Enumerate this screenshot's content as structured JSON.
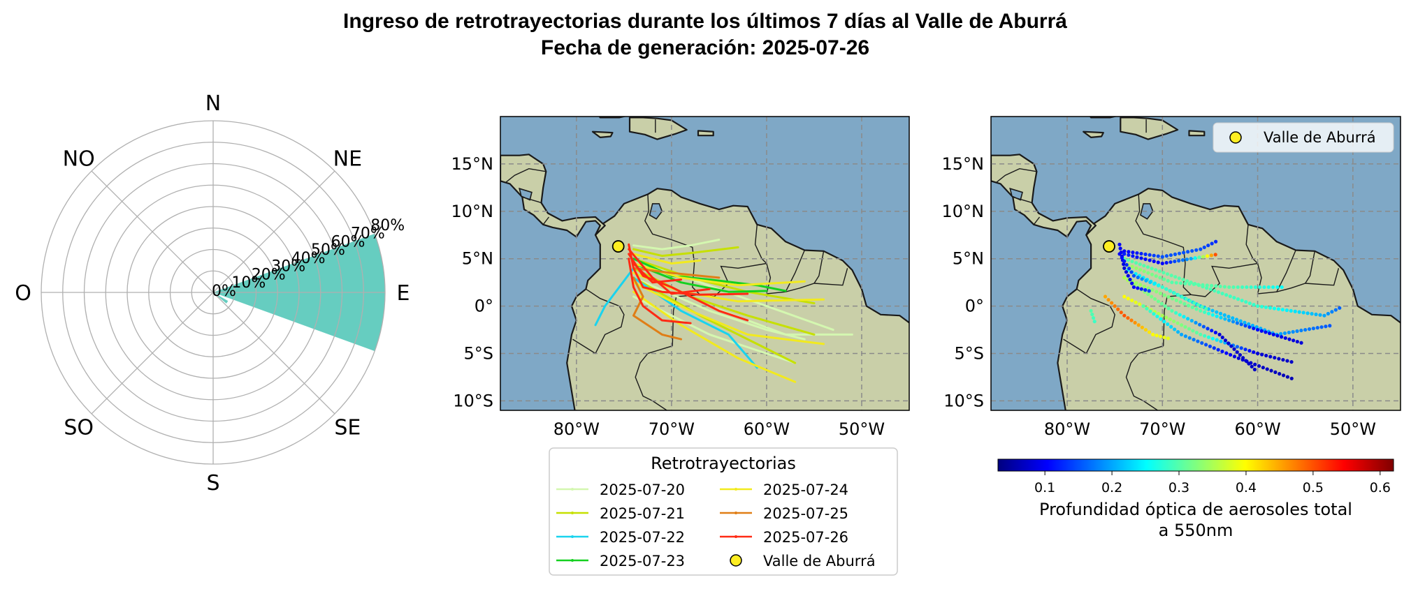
{
  "title": {
    "line1": "Ingreso de retrotrayectorias durante los últimos 7 días al Valle de Aburrá",
    "line2": "Fecha de generación: 2025-07-26"
  },
  "colors": {
    "rose_fill": "#66cdc0",
    "ocean": "#7fa8c6",
    "land": "#c9cfa8",
    "marker": "#ffee22"
  },
  "chart_data": [
    {
      "type": "polar-bar",
      "directions": [
        "N",
        "NE",
        "E",
        "SE",
        "S",
        "SO",
        "O",
        "NO"
      ],
      "radial_tick_labels": [
        "0%",
        "10%",
        "20%",
        "30%",
        "40%",
        "50%",
        "60%",
        "70%",
        "80%"
      ],
      "rlim": [
        0,
        80
      ],
      "grid": true,
      "sectors": [
        {
          "direction": "E",
          "center_deg": 90,
          "width_deg": 40,
          "value": 80
        },
        {
          "direction": "SE",
          "center_deg": 125,
          "width_deg": 10,
          "value": 8
        }
      ]
    },
    {
      "type": "line",
      "xlim": [
        -88,
        -45
      ],
      "ylim": [
        -11,
        20
      ],
      "x_ticks": [
        -80,
        -70,
        -60,
        -50
      ],
      "x_tick_labels": [
        "80°W",
        "70°W",
        "60°W",
        "50°W"
      ],
      "y_ticks": [
        15,
        10,
        5,
        0,
        -5,
        -10
      ],
      "y_tick_labels": [
        "15°N",
        "10°N",
        "5°N",
        "0°",
        "5°S",
        "10°S"
      ],
      "grid": true,
      "legend_title": "Retrotrayectorias",
      "legend_position": "below",
      "origin": {
        "name": "Valle de Aburrá",
        "lon": -75.6,
        "lat": 6.3
      },
      "series": [
        {
          "name": "2025-07-20",
          "color": "#d4f7b0",
          "lines": [
            [
              [
                -74,
                6.4
              ],
              [
                -71,
                6
              ],
              [
                -68,
                6.4
              ],
              [
                -65,
                7
              ]
            ],
            [
              [
                -74,
                5
              ],
              [
                -67,
                2.5
              ],
              [
                -60,
                0
              ],
              [
                -53,
                -2.5
              ]
            ],
            [
              [
                -74,
                3
              ],
              [
                -66,
                -0.5
              ],
              [
                -60,
                -2.5
              ],
              [
                -56,
                -3.5
              ]
            ],
            [
              [
                -74,
                4
              ],
              [
                -66,
                0
              ],
              [
                -58,
                -3
              ],
              [
                -51,
                -3
              ]
            ],
            [
              [
                -74,
                1
              ],
              [
                -66,
                -3
              ],
              [
                -60,
                -5
              ],
              [
                -57,
                -6
              ]
            ]
          ]
        },
        {
          "name": "2025-07-21",
          "color": "#c6e000",
          "lines": [
            [
              [
                -74,
                6
              ],
              [
                -71,
                5.3
              ],
              [
                -68,
                5.6
              ],
              [
                -63,
                6.2
              ]
            ],
            [
              [
                -74,
                5
              ],
              [
                -68,
                3
              ],
              [
                -62,
                1.5
              ],
              [
                -55,
                0.3
              ]
            ],
            [
              [
                -74,
                4
              ],
              [
                -68,
                1
              ],
              [
                -62,
                -1
              ],
              [
                -55,
                -3
              ]
            ],
            [
              [
                -74,
                3
              ],
              [
                -67,
                -1
              ],
              [
                -61,
                -4
              ],
              [
                -57,
                -6
              ]
            ]
          ]
        },
        {
          "name": "2025-07-22",
          "color": "#1ad3ee",
          "lines": [
            [
              [
                -74,
                4
              ],
              [
                -77,
                0
              ],
              [
                -78,
                -2
              ]
            ],
            [
              [
                -74,
                3
              ],
              [
                -69,
                -0.5
              ],
              [
                -64,
                -3
              ],
              [
                -61,
                -6.5
              ]
            ],
            [
              [
                -74,
                5
              ],
              [
                -70,
                3.2
              ],
              [
                -66,
                2.6
              ]
            ]
          ]
        },
        {
          "name": "2025-07-23",
          "color": "#14d020",
          "lines": [
            [
              [
                -74,
                5
              ],
              [
                -70,
                3.2
              ],
              [
                -66,
                2.8
              ],
              [
                -61,
                2.2
              ],
              [
                -58,
                1.6
              ]
            ],
            [
              [
                -74,
                4.5
              ],
              [
                -69,
                2.5
              ],
              [
                -64,
                1.5
              ],
              [
                -60,
                1.6
              ]
            ]
          ]
        },
        {
          "name": "2025-07-24",
          "color": "#f2ea1e",
          "lines": [
            [
              [
                -74,
                4.5
              ],
              [
                -69,
                3
              ],
              [
                -63,
                2.2
              ],
              [
                -56,
                2.6
              ]
            ],
            [
              [
                -74,
                3.5
              ],
              [
                -69,
                1.5
              ],
              [
                -63,
                0.5
              ],
              [
                -54,
                0.7
              ]
            ],
            [
              [
                -74,
                2.5
              ],
              [
                -68,
                -0.5
              ],
              [
                -62,
                -3
              ],
              [
                -54,
                -4
              ]
            ],
            [
              [
                -74,
                1.5
              ],
              [
                -69,
                -2
              ],
              [
                -63,
                -5.5
              ],
              [
                -57,
                -8
              ]
            ],
            [
              [
                -74,
                5.5
              ],
              [
                -70,
                4.5
              ],
              [
                -67,
                4.8
              ]
            ]
          ]
        },
        {
          "name": "2025-07-25",
          "color": "#e07e16",
          "lines": [
            [
              [
                -74,
                3
              ],
              [
                -73,
                1
              ],
              [
                -74,
                -1
              ],
              [
                -71,
                -3
              ],
              [
                -69,
                -3.5
              ]
            ],
            [
              [
                -74,
                4
              ],
              [
                -70,
                3.5
              ],
              [
                -65,
                3
              ]
            ]
          ]
        },
        {
          "name": "2025-07-26",
          "color": "#ff2a14",
          "lines": [
            [
              [
                -74.5,
                6.5
              ],
              [
                -74,
                4
              ],
              [
                -73,
                2
              ],
              [
                -71,
                1.5
              ],
              [
                -67,
                1.2
              ],
              [
                -62,
                1.3
              ]
            ],
            [
              [
                -74.5,
                6
              ],
              [
                -72,
                3
              ],
              [
                -70,
                1.3
              ],
              [
                -66,
                1.8
              ]
            ],
            [
              [
                -74.5,
                5.5
              ],
              [
                -73,
                3.2
              ],
              [
                -70,
                2
              ],
              [
                -65,
                -0.5
              ],
              [
                -62,
                -1.5
              ]
            ],
            [
              [
                -74.5,
                5
              ],
              [
                -74,
                2
              ],
              [
                -73,
                0
              ],
              [
                -71,
                -1.5
              ],
              [
                -68,
                -1.8
              ]
            ],
            [
              [
                -74,
                4.5
              ],
              [
                -72,
                2.5
              ],
              [
                -69,
                2.8
              ]
            ]
          ]
        }
      ]
    },
    {
      "type": "scatter",
      "xlim": [
        -88,
        -45
      ],
      "ylim": [
        -11,
        20
      ],
      "x_ticks": [
        -80,
        -70,
        -60,
        -50
      ],
      "x_tick_labels": [
        "80°W",
        "70°W",
        "60°W",
        "50°W"
      ],
      "y_ticks": [
        15,
        10,
        5,
        0,
        -5,
        -10
      ],
      "y_tick_labels": [
        "15°N",
        "10°N",
        "5°N",
        "0°",
        "5°S",
        "10°S"
      ],
      "grid": true,
      "legend_label": "Valle de Aburrá",
      "legend_position": "top-right",
      "origin": {
        "name": "Valle de Aburrá",
        "lon": -75.6,
        "lat": 6.3
      },
      "colorbar": {
        "label_line1": "Profundidad óptica de aerosoles total",
        "label_line2": "a 550nm",
        "range": [
          0.03,
          0.62
        ],
        "ticks": [
          0.1,
          0.2,
          0.3,
          0.4,
          0.5,
          0.6
        ],
        "tick_labels": [
          "0.1",
          "0.2",
          "0.3",
          "0.4",
          "0.5",
          "0.6"
        ],
        "colormap": "jet"
      },
      "tracks": [
        {
          "path": [
            [
              -74,
              5.8
            ],
            [
              -70,
              5.2
            ],
            [
              -66,
              6
            ],
            [
              -64,
              7
            ]
          ],
          "aod": [
            0.1,
            0.15,
            0.15,
            0.12
          ]
        },
        {
          "path": [
            [
              -74,
              5
            ],
            [
              -67,
              2.5
            ],
            [
              -60,
              0
            ],
            [
              -53,
              -1
            ],
            [
              -51,
              0
            ]
          ],
          "aod": [
            0.3,
            0.3,
            0.28,
            0.2,
            0.15
          ]
        },
        {
          "path": [
            [
              -74,
              4
            ],
            [
              -66,
              0
            ],
            [
              -58,
              -3
            ],
            [
              -52,
              -2
            ]
          ],
          "aod": [
            0.25,
            0.22,
            0.2,
            0.15
          ]
        },
        {
          "path": [
            [
              -74,
              3
            ],
            [
              -66,
              -0.5
            ],
            [
              -60,
              -2.5
            ],
            [
              -55,
              -4
            ]
          ],
          "aod": [
            0.35,
            0.3,
            0.1,
            0.08
          ]
        },
        {
          "path": [
            [
              -74,
              1
            ],
            [
              -66,
              -3
            ],
            [
              -60,
              -5
            ],
            [
              -56,
              -6
            ]
          ],
          "aod": [
            0.4,
            0.3,
            0.08,
            0.07
          ]
        },
        {
          "path": [
            [
              -74,
              3
            ],
            [
              -69,
              -0.5
            ],
            [
              -64,
              -3
            ],
            [
              -60,
              -7
            ]
          ],
          "aod": [
            0.35,
            0.3,
            0.08,
            0.07
          ]
        },
        {
          "path": [
            [
              -72,
              0
            ],
            [
              -68,
              -3
            ],
            [
              -62,
              -5.5
            ],
            [
              -56,
              -7.8
            ]
          ],
          "aod": [
            0.3,
            0.2,
            0.08,
            0.06
          ]
        },
        {
          "path": [
            [
              -74,
              4.5
            ],
            [
              -69,
              2.5
            ],
            [
              -63,
              2
            ],
            [
              -57,
              2
            ]
          ],
          "aod": [
            0.35,
            0.3,
            0.3,
            0.25
          ]
        },
        {
          "path": [
            [
              -74,
              5.5
            ],
            [
              -70,
              4.5
            ],
            [
              -67,
              5
            ],
            [
              -64,
              5.5
            ]
          ],
          "aod": [
            0.12,
            0.1,
            0.2,
            0.55
          ]
        },
        {
          "path": [
            [
              -76,
              1
            ],
            [
              -74,
              -1
            ],
            [
              -71,
              -3
            ],
            [
              -69,
              -3.5
            ]
          ],
          "aod": [
            0.45,
            0.5,
            0.4,
            0.38
          ]
        },
        {
          "path": [
            [
              -77.5,
              -0.5
            ],
            [
              -77,
              -2
            ]
          ],
          "aod": [
            0.3,
            0.28
          ]
        },
        {
          "path": [
            [
              -74.5,
              6.5
            ],
            [
              -74,
              4
            ],
            [
              -73,
              2
            ],
            [
              -71,
              1.5
            ]
          ],
          "aod": [
            0.1,
            0.08,
            0.1,
            0.15
          ]
        },
        {
          "path": [
            [
              -74.5,
              5.5
            ],
            [
              -73,
              3.2
            ],
            [
              -70,
              2
            ],
            [
              -65,
              -0.5
            ]
          ],
          "aod": [
            0.1,
            0.15,
            0.28,
            0.3
          ]
        }
      ]
    }
  ]
}
